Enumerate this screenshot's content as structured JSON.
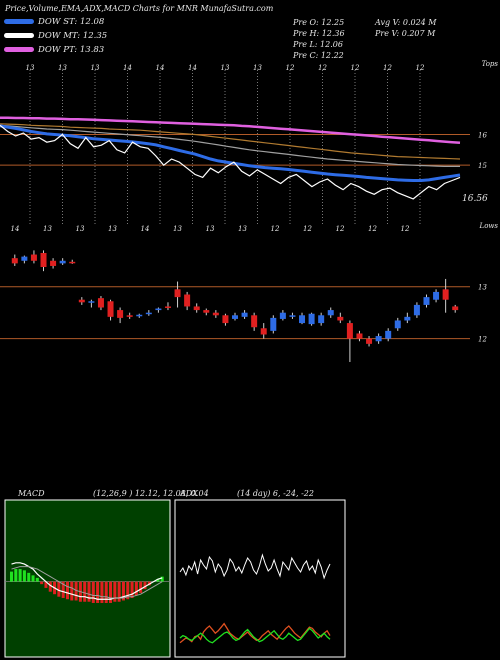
{
  "header": {
    "title": "Price,Volume,EMA,ADX,MACD Charts for MNR MunafaSutra.com"
  },
  "legend": [
    {
      "label": "DOW ST: 12.08",
      "color": "#2e6ce6"
    },
    {
      "label": "DOW MT: 12.35",
      "color": "#ffffff"
    },
    {
      "label": "DOW PT: 13.83",
      "color": "#e060e0"
    }
  ],
  "quote": {
    "open": "Pre O: 12.25",
    "high": "Pre H: 12.36",
    "low": "Pre L: 12.06",
    "close": "Pre C: 12.22",
    "avg_vol": "Avg V: 0.024 M",
    "pre_vol": "Pre V: 0.207 M"
  },
  "panels": {
    "macd_label": "MACD",
    "macd_params": "(12,26,9 ) 12.12, 12.08, 0.04",
    "adx_label": "ADX",
    "adx_params": "(14 day) 6, -24, -22"
  },
  "chart_data": [
    {
      "type": "line",
      "name": "ema-panel",
      "top_ticks": [
        "13",
        "13",
        "13",
        "14",
        "14",
        "14",
        "13",
        "13",
        "12",
        "12",
        "12",
        "12",
        "12"
      ],
      "corner_label": "Tops",
      "price_labels": [
        "16",
        "15"
      ],
      "last_value_label": "16.56",
      "x": [
        0,
        1,
        2,
        3,
        4,
        5,
        6,
        7,
        8,
        9,
        10,
        11,
        12,
        13,
        14,
        15,
        16,
        17,
        18,
        19,
        20,
        21,
        22,
        23,
        24,
        25,
        26,
        27,
        28,
        29,
        30,
        31,
        32,
        33,
        34,
        35,
        36,
        37,
        38,
        39,
        40,
        41,
        42,
        43,
        44,
        45,
        46,
        47,
        48,
        49,
        50,
        51,
        52,
        53,
        54,
        55,
        56,
        57,
        58,
        59
      ],
      "series": [
        {
          "color": "#e060e0",
          "values": [
            16.55,
            16.55,
            16.54,
            16.54,
            16.53,
            16.53,
            16.52,
            16.52,
            16.51,
            16.5,
            16.5,
            16.49,
            16.48,
            16.47,
            16.46,
            16.45,
            16.44,
            16.43,
            16.42,
            16.41,
            16.4,
            16.39,
            16.38,
            16.37,
            16.36,
            16.35,
            16.34,
            16.33,
            16.32,
            16.31,
            16.3,
            16.28,
            16.27,
            16.25,
            16.23,
            16.21,
            16.19,
            16.17,
            16.15,
            16.13,
            16.11,
            16.09,
            16.07,
            16.05,
            16.03,
            16.01,
            15.99,
            15.97,
            15.95,
            15.93,
            15.91,
            15.89,
            15.87,
            15.85,
            15.83,
            15.81,
            15.79,
            15.77,
            15.75,
            15.73
          ]
        },
        {
          "color": "#b07a30",
          "values": [
            16.35,
            16.34,
            16.33,
            16.32,
            16.3,
            16.29,
            16.28,
            16.27,
            16.26,
            16.24,
            16.23,
            16.22,
            16.21,
            16.2,
            16.18,
            16.17,
            16.16,
            16.15,
            16.14,
            16.12,
            16.1,
            16.08,
            16.06,
            16.04,
            16.02,
            16.0,
            15.97,
            15.94,
            15.91,
            15.88,
            15.85,
            15.82,
            15.79,
            15.76,
            15.73,
            15.7,
            15.67,
            15.64,
            15.61,
            15.58,
            15.55,
            15.52,
            15.49,
            15.46,
            15.43,
            15.4,
            15.38,
            15.36,
            15.34,
            15.32,
            15.3,
            15.28,
            15.27,
            15.26,
            15.25,
            15.24,
            15.23,
            15.22,
            15.21,
            15.2
          ]
        },
        {
          "color": "#a0a0a0",
          "values": [
            16.3,
            16.28,
            16.26,
            16.24,
            16.22,
            16.2,
            16.18,
            16.17,
            16.16,
            16.14,
            16.12,
            16.1,
            16.08,
            16.06,
            16.04,
            16.02,
            16.0,
            15.98,
            15.96,
            15.94,
            15.92,
            15.9,
            15.87,
            15.84,
            15.81,
            15.78,
            15.74,
            15.7,
            15.66,
            15.62,
            15.58,
            15.54,
            15.5,
            15.47,
            15.44,
            15.41,
            15.38,
            15.35,
            15.32,
            15.29,
            15.26,
            15.23,
            15.2,
            15.18,
            15.16,
            15.14,
            15.12,
            15.1,
            15.08,
            15.06,
            15.04,
            15.02,
            15.01,
            15.0,
            14.99,
            14.98,
            14.97,
            14.96,
            14.96,
            14.96
          ]
        },
        {
          "color": "#2e6ce6",
          "values": [
            16.28,
            16.24,
            16.2,
            16.15,
            16.1,
            16.06,
            16.02,
            16.0,
            15.98,
            15.96,
            15.93,
            15.9,
            15.86,
            15.84,
            15.82,
            15.8,
            15.78,
            15.76,
            15.73,
            15.7,
            15.66,
            15.6,
            15.54,
            15.48,
            15.42,
            15.36,
            15.28,
            15.2,
            15.14,
            15.1,
            15.06,
            15.02,
            14.98,
            14.95,
            14.92,
            14.9,
            14.88,
            14.86,
            14.83,
            14.8,
            14.77,
            14.74,
            14.71,
            14.69,
            14.67,
            14.65,
            14.63,
            14.6,
            14.58,
            14.56,
            14.54,
            14.52,
            14.51,
            14.5,
            14.5,
            14.52,
            14.56,
            14.6,
            14.64,
            14.68
          ]
        },
        {
          "color": "#ffffff",
          "values": [
            16.3,
            16.1,
            15.95,
            16.05,
            15.85,
            15.9,
            15.75,
            15.8,
            16.0,
            15.7,
            15.55,
            15.9,
            15.6,
            15.65,
            15.8,
            15.5,
            15.4,
            15.75,
            15.6,
            15.55,
            15.3,
            15.0,
            15.2,
            15.1,
            14.9,
            14.7,
            14.6,
            14.9,
            14.75,
            14.95,
            15.1,
            14.8,
            14.65,
            14.85,
            14.7,
            14.55,
            14.4,
            14.6,
            14.7,
            14.5,
            14.3,
            14.45,
            14.55,
            14.35,
            14.2,
            14.4,
            14.3,
            14.15,
            14.05,
            14.2,
            14.25,
            14.1,
            14.0,
            13.9,
            14.1,
            14.3,
            14.2,
            14.4,
            14.5,
            14.6
          ]
        }
      ],
      "ylim": [
        13.7,
        16.8
      ]
    },
    {
      "type": "candlestick",
      "name": "price-panel",
      "top_ticks": [
        "14",
        "13",
        "13",
        "13",
        "14",
        "13",
        "13",
        "13",
        "12",
        "12",
        "12",
        "12",
        "12"
      ],
      "corner_label": "Lows",
      "price_labels": [
        "13",
        "12"
      ],
      "ylim": [
        11.3,
        13.9
      ],
      "candles": [
        {
          "o": 13.55,
          "h": 13.62,
          "l": 13.4,
          "c": 13.45
        },
        {
          "o": 13.5,
          "h": 13.6,
          "l": 13.45,
          "c": 13.58
        },
        {
          "o": 13.62,
          "h": 13.7,
          "l": 13.45,
          "c": 13.5
        },
        {
          "o": 13.65,
          "h": 13.7,
          "l": 13.3,
          "c": 13.38
        },
        {
          "o": 13.5,
          "h": 13.55,
          "l": 13.35,
          "c": 13.4
        },
        {
          "o": 13.45,
          "h": 13.55,
          "l": 13.42,
          "c": 13.5
        },
        {
          "o": 13.48,
          "h": 13.52,
          "l": 13.44,
          "c": 13.46
        },
        {
          "o": 12.75,
          "h": 12.8,
          "l": 12.65,
          "c": 12.7
        },
        {
          "o": 12.7,
          "h": 12.75,
          "l": 12.6,
          "c": 12.72
        },
        {
          "o": 12.78,
          "h": 12.82,
          "l": 12.55,
          "c": 12.6
        },
        {
          "o": 12.72,
          "h": 12.75,
          "l": 12.35,
          "c": 12.42
        },
        {
          "o": 12.55,
          "h": 12.6,
          "l": 12.3,
          "c": 12.4
        },
        {
          "o": 12.45,
          "h": 12.5,
          "l": 12.38,
          "c": 12.42
        },
        {
          "o": 12.44,
          "h": 12.48,
          "l": 12.4,
          "c": 12.46
        },
        {
          "o": 12.48,
          "h": 12.55,
          "l": 12.44,
          "c": 12.5
        },
        {
          "o": 12.55,
          "h": 12.6,
          "l": 12.5,
          "c": 12.58
        },
        {
          "o": 12.62,
          "h": 12.7,
          "l": 12.55,
          "c": 12.6
        },
        {
          "o": 12.95,
          "h": 13.1,
          "l": 12.6,
          "c": 12.8
        },
        {
          "o": 12.85,
          "h": 12.9,
          "l": 12.55,
          "c": 12.62
        },
        {
          "o": 12.62,
          "h": 12.68,
          "l": 12.5,
          "c": 12.55
        },
        {
          "o": 12.55,
          "h": 12.58,
          "l": 12.45,
          "c": 12.5
        },
        {
          "o": 12.5,
          "h": 12.55,
          "l": 12.4,
          "c": 12.45
        },
        {
          "o": 12.45,
          "h": 12.48,
          "l": 12.25,
          "c": 12.3
        },
        {
          "o": 12.38,
          "h": 12.5,
          "l": 12.35,
          "c": 12.45
        },
        {
          "o": 12.42,
          "h": 12.55,
          "l": 12.38,
          "c": 12.5
        },
        {
          "o": 12.45,
          "h": 12.5,
          "l": 12.15,
          "c": 12.22
        },
        {
          "o": 12.2,
          "h": 12.3,
          "l": 12.0,
          "c": 12.08
        },
        {
          "o": 12.15,
          "h": 12.45,
          "l": 12.1,
          "c": 12.4
        },
        {
          "o": 12.38,
          "h": 12.55,
          "l": 12.35,
          "c": 12.5
        },
        {
          "o": 12.42,
          "h": 12.5,
          "l": 12.38,
          "c": 12.45
        },
        {
          "o": 12.3,
          "h": 12.5,
          "l": 12.28,
          "c": 12.45
        },
        {
          "o": 12.28,
          "h": 12.5,
          "l": 12.25,
          "c": 12.48
        },
        {
          "o": 12.3,
          "h": 12.5,
          "l": 12.25,
          "c": 12.45
        },
        {
          "o": 12.45,
          "h": 12.6,
          "l": 12.4,
          "c": 12.55
        },
        {
          "o": 12.42,
          "h": 12.5,
          "l": 12.3,
          "c": 12.35
        },
        {
          "o": 12.3,
          "h": 12.35,
          "l": 11.55,
          "c": 12.0
        },
        {
          "o": 12.1,
          "h": 12.15,
          "l": 11.95,
          "c": 12.0
        },
        {
          "o": 12.0,
          "h": 12.05,
          "l": 11.85,
          "c": 11.9
        },
        {
          "o": 11.95,
          "h": 12.1,
          "l": 11.9,
          "c": 12.05
        },
        {
          "o": 12.0,
          "h": 12.2,
          "l": 11.95,
          "c": 12.15
        },
        {
          "o": 12.2,
          "h": 12.4,
          "l": 12.15,
          "c": 12.35
        },
        {
          "o": 12.35,
          "h": 12.5,
          "l": 12.3,
          "c": 12.42
        },
        {
          "o": 12.45,
          "h": 12.7,
          "l": 12.4,
          "c": 12.65
        },
        {
          "o": 12.65,
          "h": 12.85,
          "l": 12.6,
          "c": 12.8
        },
        {
          "o": 12.75,
          "h": 12.95,
          "l": 12.7,
          "c": 12.9
        },
        {
          "o": 12.95,
          "h": 13.15,
          "l": 12.5,
          "c": 12.75
        },
        {
          "o": 12.62,
          "h": 12.65,
          "l": 12.5,
          "c": 12.55
        }
      ]
    },
    {
      "type": "bar",
      "name": "macd-panel",
      "zero_ratio": 0.52,
      "histogram": [
        0.08,
        0.1,
        0.1,
        0.09,
        0.07,
        0.05,
        0.03,
        -0.02,
        -0.05,
        -0.08,
        -0.1,
        -0.12,
        -0.13,
        -0.14,
        -0.15,
        -0.15,
        -0.16,
        -0.16,
        -0.16,
        -0.17,
        -0.17,
        -0.17,
        -0.17,
        -0.17,
        -0.16,
        -0.16,
        -0.15,
        -0.14,
        -0.13,
        -0.11,
        -0.09,
        -0.06,
        -0.03,
        0.0,
        0.02,
        0.04
      ],
      "macd": [
        0.14,
        0.15,
        0.15,
        0.14,
        0.12,
        0.1,
        0.06,
        0.03,
        0.0,
        -0.03,
        -0.05,
        -0.07,
        -0.08,
        -0.09,
        -0.1,
        -0.11,
        -0.12,
        -0.12,
        -0.13,
        -0.13,
        -0.14,
        -0.14,
        -0.14,
        -0.14,
        -0.13,
        -0.13,
        -0.12,
        -0.11,
        -0.1,
        -0.08,
        -0.06,
        -0.04,
        -0.02,
        0.0,
        0.02,
        0.03
      ],
      "signal": [
        0.1,
        0.11,
        0.12,
        0.12,
        0.12,
        0.11,
        0.1,
        0.08,
        0.06,
        0.04,
        0.02,
        0.0,
        -0.02,
        -0.04,
        -0.05,
        -0.07,
        -0.08,
        -0.09,
        -0.1,
        -0.11,
        -0.11,
        -0.12,
        -0.12,
        -0.13,
        -0.13,
        -0.13,
        -0.13,
        -0.12,
        -0.12,
        -0.11,
        -0.1,
        -0.08,
        -0.06,
        -0.04,
        -0.02,
        0.0
      ],
      "ylim": [
        -0.5,
        0.5
      ]
    },
    {
      "type": "line",
      "name": "adx-panel",
      "ylim": [
        0,
        100
      ],
      "series": [
        {
          "color": "#ffffff",
          "values": [
            68,
            72,
            65,
            74,
            70,
            78,
            66,
            80,
            75,
            71,
            83,
            79,
            68,
            76,
            72,
            64,
            70,
            81,
            77,
            69,
            73,
            67,
            75,
            82,
            78,
            70,
            66,
            74,
            85,
            76,
            69,
            72,
            80,
            71,
            64,
            78,
            74,
            70,
            82,
            77,
            72,
            68,
            75,
            79,
            70,
            74,
            67,
            80,
            73,
            62,
            70,
            76
          ]
        },
        {
          "color": "#e05020",
          "values": [
            6,
            8,
            10,
            9,
            7,
            11,
            12,
            9,
            15,
            18,
            20,
            17,
            14,
            16,
            19,
            22,
            18,
            14,
            12,
            10,
            9,
            11,
            13,
            15,
            12,
            10,
            8,
            9,
            12,
            14,
            16,
            13,
            11,
            9,
            12,
            15,
            18,
            20,
            17,
            14,
            12,
            10,
            13,
            16,
            19,
            18,
            15,
            13,
            11,
            14,
            16,
            12
          ]
        },
        {
          "color": "#20e020",
          "values": [
            10,
            12,
            11,
            9,
            8,
            10,
            12,
            14,
            12,
            9,
            7,
            6,
            8,
            10,
            12,
            14,
            15,
            13,
            10,
            8,
            9,
            12,
            15,
            17,
            14,
            11,
            9,
            7,
            8,
            10,
            12,
            14,
            16,
            13,
            10,
            9,
            11,
            14,
            12,
            10,
            8,
            9,
            12,
            15,
            18,
            16,
            13,
            10,
            12,
            14,
            11,
            9
          ]
        }
      ]
    }
  ]
}
